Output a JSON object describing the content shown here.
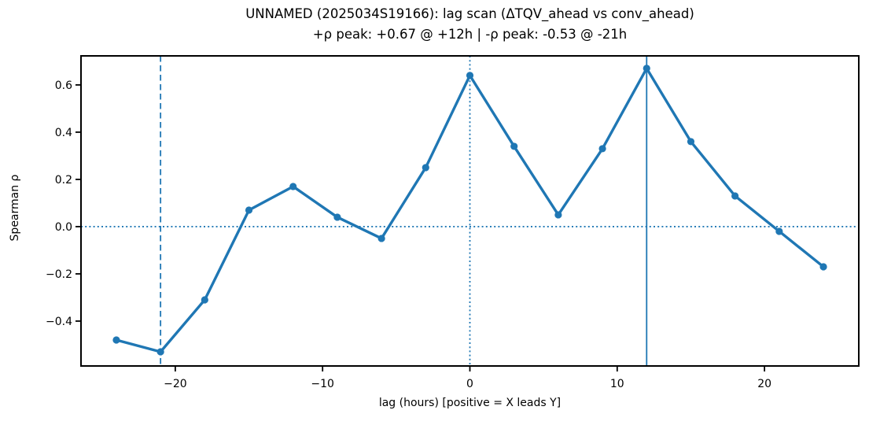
{
  "chart_data": {
    "type": "line",
    "title": "UNNAMED (2025034S19166): lag scan (ΔTQV_ahead vs conv_ahead)",
    "subtitle": "+ρ peak: +0.67 @ +12h | -ρ peak: -0.53 @ -21h",
    "xlabel": "lag (hours) [positive = X leads Y]",
    "ylabel": "Spearman ρ",
    "series": [
      {
        "name": "spearman-rho-vs-lag",
        "x": [
          -24,
          -21,
          -18,
          -15,
          -12,
          -9,
          -6,
          -3,
          0,
          3,
          6,
          9,
          12,
          15,
          18,
          21,
          24
        ],
        "y": [
          -0.48,
          -0.53,
          -0.31,
          0.07,
          0.17,
          0.04,
          -0.05,
          0.25,
          0.64,
          0.34,
          0.05,
          0.33,
          0.67,
          0.36,
          0.13,
          -0.02,
          -0.17
        ]
      }
    ],
    "xlim": [
      -26.4,
      26.4
    ],
    "ylim": [
      -0.59,
      0.723
    ],
    "x_ticks": [
      -20,
      -10,
      0,
      10,
      20
    ],
    "x_tick_labels": [
      "−20",
      "−10",
      "0",
      "10",
      "20"
    ],
    "y_ticks": [
      0.6,
      0.4,
      0.2,
      0.0,
      -0.2,
      -0.4
    ],
    "y_tick_labels": [
      "0.6",
      "0.4",
      "0.2",
      "0.0",
      "−0.2",
      "−0.4"
    ],
    "reference_lines": [
      {
        "axis": "x",
        "value": -21,
        "style": "dashed",
        "name": "neg-peak-vline"
      },
      {
        "axis": "x",
        "value": 0,
        "style": "dotted",
        "name": "zero-lag-vline"
      },
      {
        "axis": "x",
        "value": 12,
        "style": "solid",
        "name": "pos-peak-vline"
      },
      {
        "axis": "y",
        "value": 0,
        "style": "dotted",
        "name": "zero-rho-hline"
      }
    ],
    "colors": {
      "line": "#1f77b4",
      "marker": "#1f77b4",
      "reference": "#1f77b4",
      "spine": "#000000",
      "text": "#000000",
      "background": "#ffffff"
    },
    "grid": false,
    "legend": "none",
    "marker": "o",
    "peaks": {
      "positive": {
        "rho": 0.67,
        "lag_hours": 12
      },
      "negative": {
        "rho": -0.53,
        "lag_hours": -21
      }
    }
  }
}
